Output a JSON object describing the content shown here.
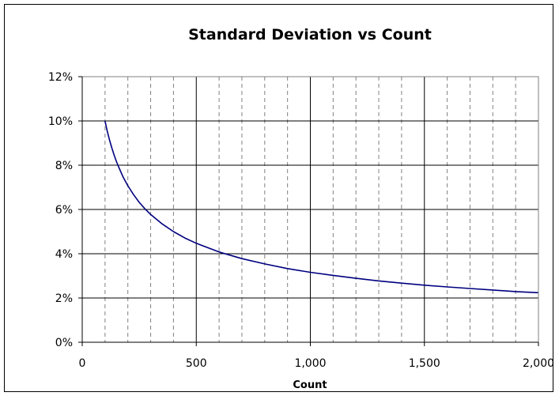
{
  "chart_data": {
    "type": "line",
    "title": "Standard Deviation vs Count",
    "xlabel": "Count",
    "ylabel": "",
    "xlim": [
      0,
      2000
    ],
    "ylim": [
      0,
      0.12
    ],
    "x_ticks": [
      0,
      500,
      1000,
      1500,
      2000
    ],
    "x_tick_labels": [
      "0",
      "500",
      "1,000",
      "1,500",
      "2,000"
    ],
    "x_minor_step": 100,
    "y_ticks": [
      0,
      0.02,
      0.04,
      0.06,
      0.08,
      0.1,
      0.12
    ],
    "y_tick_labels": [
      "0%",
      "2%",
      "4%",
      "6%",
      "8%",
      "10%",
      "12%"
    ],
    "grid": {
      "major_x": "solid",
      "minor_x": "dashed",
      "major_y": "solid"
    },
    "legend": "none",
    "series": [
      {
        "color": "#000080",
        "x": [
          100,
          110,
          120,
          130,
          140,
          150,
          160,
          180,
          200,
          225,
          250,
          275,
          300,
          350,
          400,
          450,
          500,
          600,
          700,
          800,
          900,
          1000,
          1100,
          1200,
          1300,
          1400,
          1500,
          1600,
          1700,
          1800,
          1900,
          2000
        ],
        "y": [
          0.1,
          0.0953,
          0.0913,
          0.0877,
          0.0845,
          0.0816,
          0.0791,
          0.0745,
          0.0707,
          0.0667,
          0.0632,
          0.0603,
          0.0577,
          0.0535,
          0.05,
          0.0471,
          0.0447,
          0.0408,
          0.0378,
          0.0354,
          0.0333,
          0.0316,
          0.0302,
          0.0289,
          0.0277,
          0.0267,
          0.0258,
          0.025,
          0.0243,
          0.0236,
          0.0229,
          0.0224
        ]
      }
    ]
  }
}
